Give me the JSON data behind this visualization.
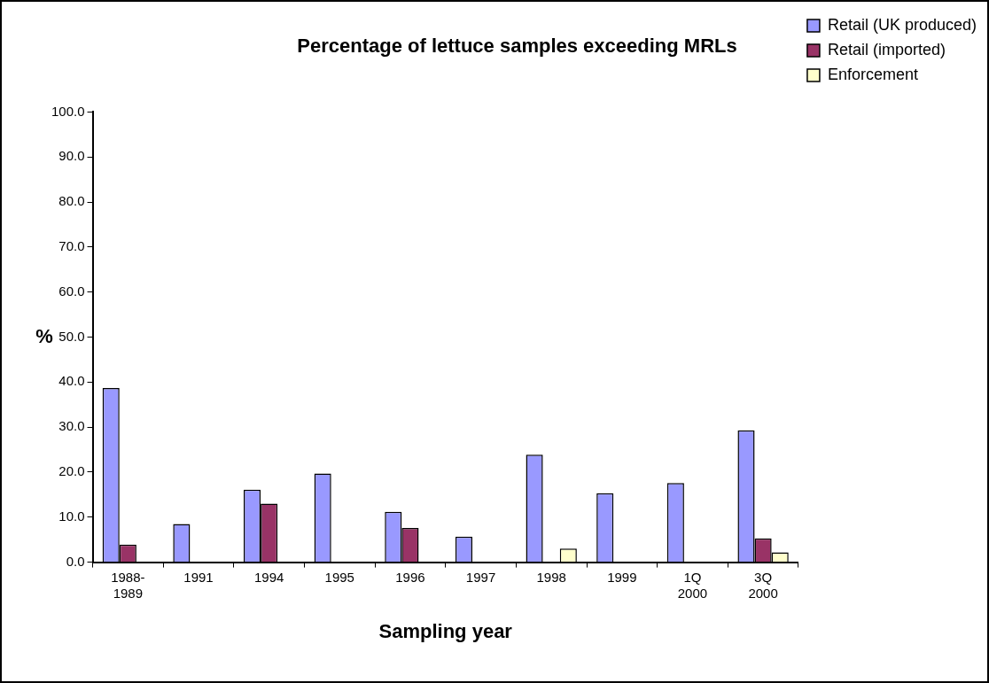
{
  "chart_data": {
    "type": "bar",
    "title": "Percentage of lettuce samples exceeding MRLs",
    "xlabel": "Sampling year",
    "ylabel": "%",
    "categories": [
      "1988- 1989",
      "1991",
      "1994",
      "1995",
      "1996",
      "1997",
      "1998",
      "1999",
      "1Q 2000",
      "3Q 2000"
    ],
    "series": [
      {
        "name": "Retail (UK produced)",
        "color": "#9999ff",
        "values": [
          38.7,
          8.5,
          16.1,
          19.7,
          11.2,
          5.7,
          23.9,
          15.3,
          17.6,
          29.3
        ]
      },
      {
        "name": "Retail (imported)",
        "color": "#993366",
        "values": [
          3.9,
          null,
          13.0,
          null,
          7.6,
          null,
          null,
          null,
          null,
          5.3
        ]
      },
      {
        "name": "Enforcement",
        "color": "#ffffcc",
        "values": [
          null,
          null,
          null,
          null,
          null,
          null,
          3.0,
          null,
          null,
          2.2
        ]
      }
    ],
    "ylim": [
      0,
      100
    ],
    "yticks": [
      {
        "value": 0,
        "label": "0.0"
      },
      {
        "value": 10,
        "label": "10.0"
      },
      {
        "value": 20,
        "label": "20.0"
      },
      {
        "value": 30,
        "label": "30.0"
      },
      {
        "value": 40,
        "label": "40.0"
      },
      {
        "value": 50,
        "label": "50.0"
      },
      {
        "value": 60,
        "label": "60.0"
      },
      {
        "value": 70,
        "label": "70.0"
      },
      {
        "value": 80,
        "label": "80.0"
      },
      {
        "value": 90,
        "label": "90.0"
      },
      {
        "value": 100,
        "label": "100.0"
      }
    ],
    "grid": false,
    "legend": "top right"
  }
}
